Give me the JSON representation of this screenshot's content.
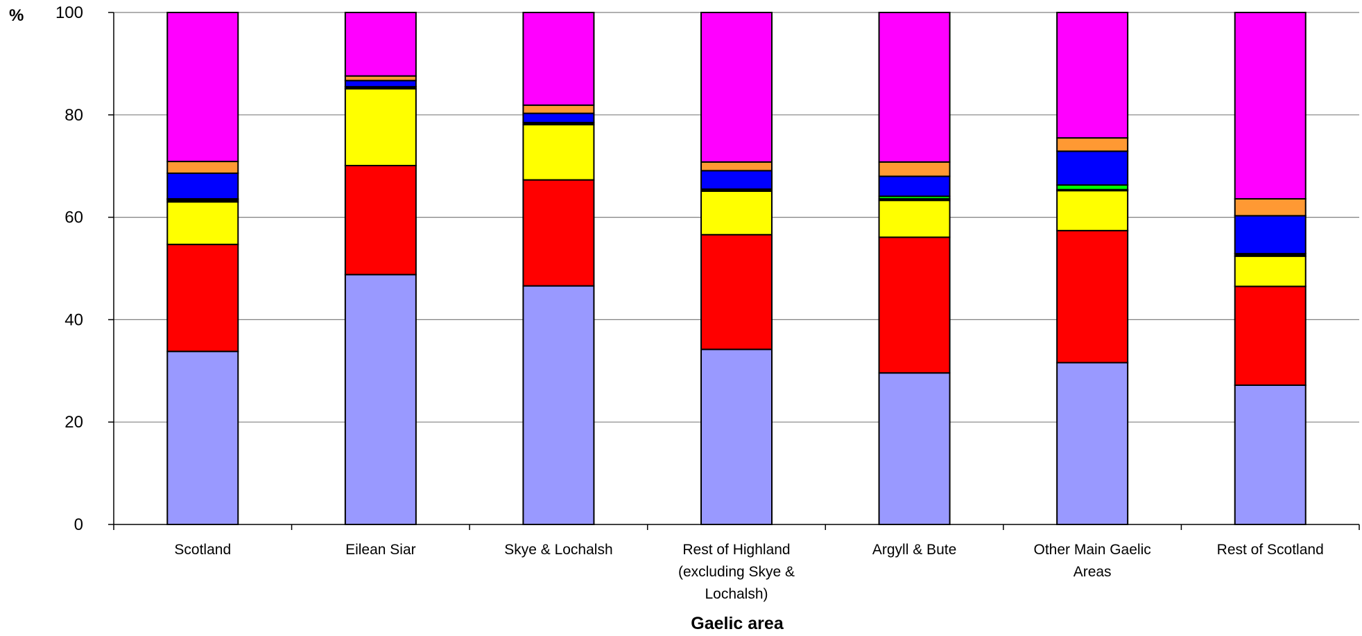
{
  "chart_data": {
    "type": "bar",
    "stacked": true,
    "title": "",
    "xlabel": "Gaelic area",
    "ylabel": "%",
    "ylim": [
      0,
      100
    ],
    "yticks": [
      0,
      20,
      40,
      60,
      80,
      100
    ],
    "grid": true,
    "categories": [
      "Scotland",
      "Eilean Siar",
      "Skye & Lochalsh",
      "Rest of Highland (excluding Skye & Lochalsh)",
      "Argyll & Bute",
      "Other Main Gaelic Areas",
      "Rest of Scotland"
    ],
    "category_lines": [
      [
        "Scotland"
      ],
      [
        "Eilean Siar"
      ],
      [
        "Skye & Lochalsh"
      ],
      [
        "Rest of Highland",
        "(excluding Skye &",
        "Lochalsh)"
      ],
      [
        "Argyll & Bute"
      ],
      [
        "Other Main Gaelic",
        "Areas"
      ],
      [
        "Rest of Scotland"
      ]
    ],
    "series": [
      {
        "color": "#9999ff",
        "values": [
          33.8,
          48.8,
          46.6,
          34.2,
          29.6,
          31.6,
          27.2
        ]
      },
      {
        "color": "#ff0000",
        "values": [
          20.9,
          21.3,
          20.7,
          22.4,
          26.5,
          25.8,
          19.3
        ]
      },
      {
        "color": "#ffff00",
        "values": [
          8.3,
          15.0,
          10.8,
          8.5,
          7.2,
          7.8,
          5.9
        ]
      },
      {
        "color": "#000000",
        "values": [
          0.4,
          0.4,
          0.4,
          0.4,
          0.3,
          0.2,
          0.5
        ]
      },
      {
        "color": "#00ff00",
        "values": [
          0.2,
          0.0,
          0.0,
          0.0,
          0.5,
          0.9,
          0.0
        ]
      },
      {
        "color": "#0000ff",
        "values": [
          5.0,
          1.2,
          1.8,
          3.6,
          3.9,
          6.6,
          7.4
        ]
      },
      {
        "color": "#ff9933",
        "values": [
          2.3,
          0.9,
          1.6,
          1.7,
          2.8,
          2.6,
          3.3
        ]
      },
      {
        "color": "#ff00ff",
        "values": [
          29.1,
          12.4,
          18.1,
          29.2,
          29.2,
          24.5,
          36.4
        ]
      }
    ]
  }
}
